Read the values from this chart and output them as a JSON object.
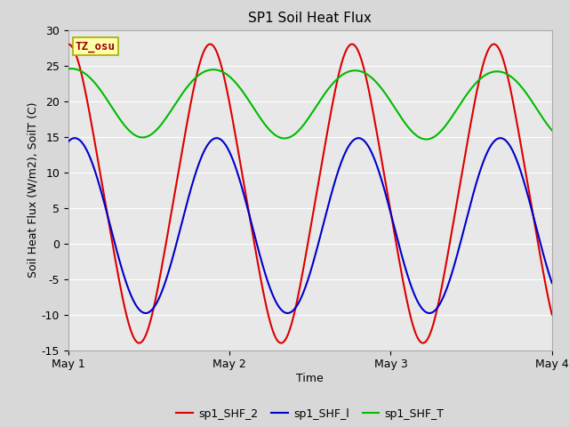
{
  "title": "SP1 Soil Heat Flux",
  "xlabel": "Time",
  "ylabel": "Soil Heat Flux (W/m2), SoilT (C)",
  "ylim": [
    -15,
    30
  ],
  "xlim": [
    0,
    3.0
  ],
  "xtick_positions": [
    0,
    1,
    2,
    3
  ],
  "xtick_labels": [
    "May 1",
    "May 2",
    "May 3",
    "May 4"
  ],
  "ytick_positions": [
    -15,
    -10,
    -5,
    0,
    5,
    10,
    15,
    20,
    25,
    30
  ],
  "color_red": "#dd0000",
  "color_blue": "#0000cc",
  "color_green": "#00bb00",
  "legend_labels": [
    "sp1_SHF_2",
    "sp1_SHF_l",
    "sp1_SHF_T"
  ],
  "annotation_text": "TZ_osu",
  "annotation_bg": "#ffffaa",
  "annotation_border": "#aaaa00",
  "annotation_text_color": "#990000",
  "figure_bg": "#d8d8d8",
  "plot_bg": "#e8e8e8",
  "grid_color": "#ffffff",
  "title_fontsize": 11,
  "axis_fontsize": 9,
  "legend_fontsize": 9
}
